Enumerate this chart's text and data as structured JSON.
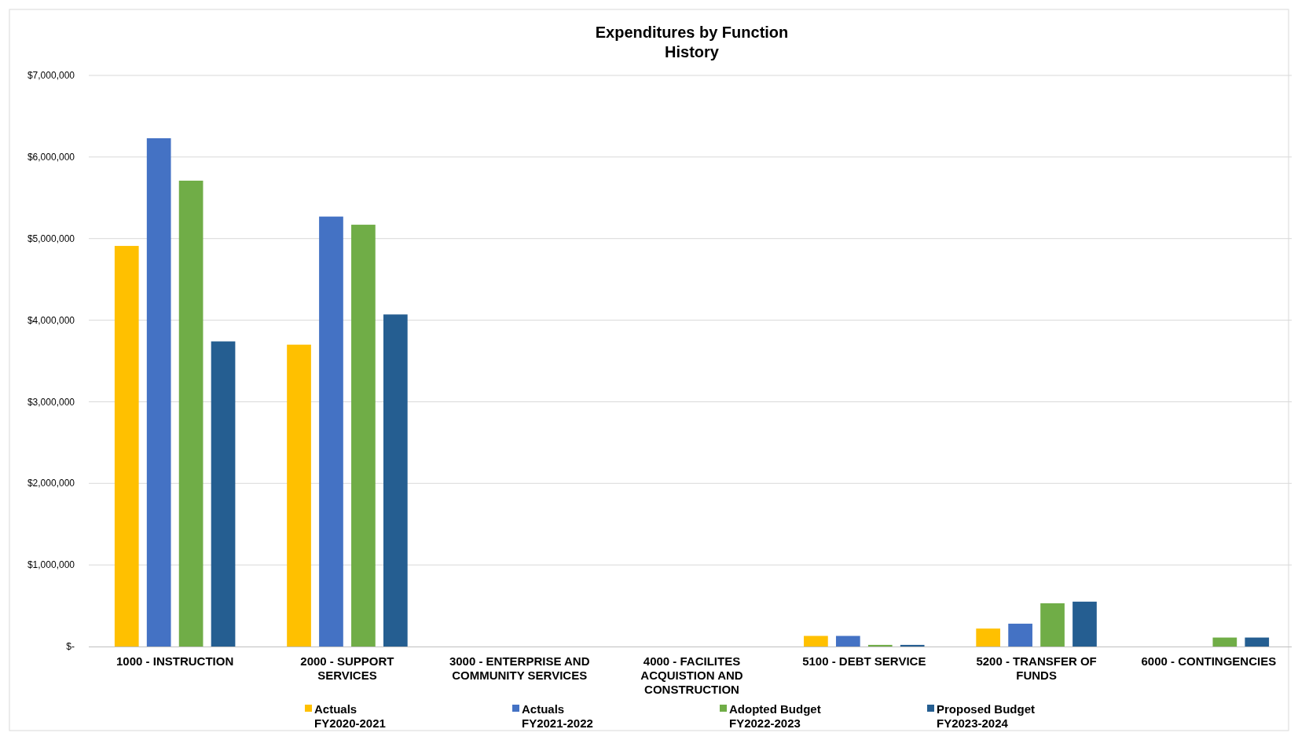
{
  "chart_data": {
    "type": "bar",
    "title": "Expenditures by Function",
    "subtitle": "History",
    "categories": [
      "1000 - INSTRUCTION",
      "2000 - SUPPORT SERVICES",
      "3000 - ENTERPRISE AND COMMUNITY SERVICES",
      "4000 - FACILITES ACQUISTION AND CONSTRUCTION",
      "5100 - DEBT SERVICE",
      "5200 - TRANSFER OF FUNDS",
      "6000 - CONTINGENCIES"
    ],
    "series": [
      {
        "name": "Actuals FY2020-2021",
        "color": "#ffc000",
        "values": [
          4910000,
          3700000,
          0,
          0,
          130000,
          220000,
          0
        ]
      },
      {
        "name": "Actuals FY2021-2022",
        "color": "#4472c4",
        "values": [
          6230000,
          5270000,
          0,
          0,
          130000,
          280000,
          0
        ]
      },
      {
        "name": "Adopted Budget FY2022-2023",
        "color": "#70ad47",
        "values": [
          5710000,
          5170000,
          0,
          0,
          20000,
          530000,
          110000
        ]
      },
      {
        "name": "Proposed Budget FY2023-2024",
        "color": "#255e91",
        "values": [
          3740000,
          4070000,
          0,
          0,
          20000,
          550000,
          110000
        ]
      }
    ],
    "ylim": [
      0,
      7000000
    ],
    "yticks": [
      {
        "value": 0,
        "label": "$-"
      },
      {
        "value": 1000000,
        "label": "$1,000,000"
      },
      {
        "value": 2000000,
        "label": "$2,000,000"
      },
      {
        "value": 3000000,
        "label": "$3,000,000"
      },
      {
        "value": 4000000,
        "label": "$4,000,000"
      },
      {
        "value": 5000000,
        "label": "$5,000,000"
      },
      {
        "value": 6000000,
        "label": "$6,000,000"
      },
      {
        "value": 7000000,
        "label": "$7,000,000"
      }
    ],
    "grid": "y",
    "legend": "bottom"
  }
}
